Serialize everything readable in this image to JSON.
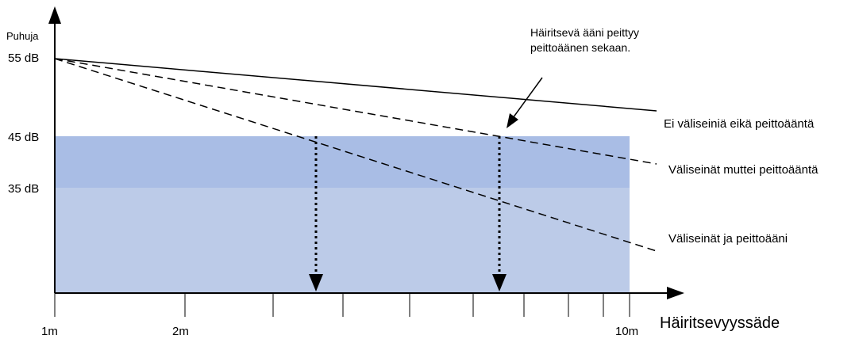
{
  "y_axis": {
    "title": "Puhuja",
    "labels": {
      "db55": "55 dB",
      "db45": "45 dB",
      "db35": "35 dB"
    }
  },
  "x_axis": {
    "title": "Häiritsevyyssäde",
    "labels": {
      "m1": "1m",
      "m2": "2m",
      "m10": "10m"
    }
  },
  "series": [
    {
      "key": "no_partitions",
      "label": "Ei väliseiniä eikä peittoääntä"
    },
    {
      "key": "partitions_no_masking",
      "label": "Väliseinät muttei peittoääntä"
    },
    {
      "key": "partitions_and_masking",
      "label": "Väliseinät ja peittoääni"
    }
  ],
  "callout": {
    "line1": "Häiritsevä ääni peittyy",
    "line2": "peittoäänen sekaan."
  },
  "colors": {
    "masking_band": "#bccbe8",
    "masking_band_upper": "#a9bde5",
    "line": "#000000"
  }
}
